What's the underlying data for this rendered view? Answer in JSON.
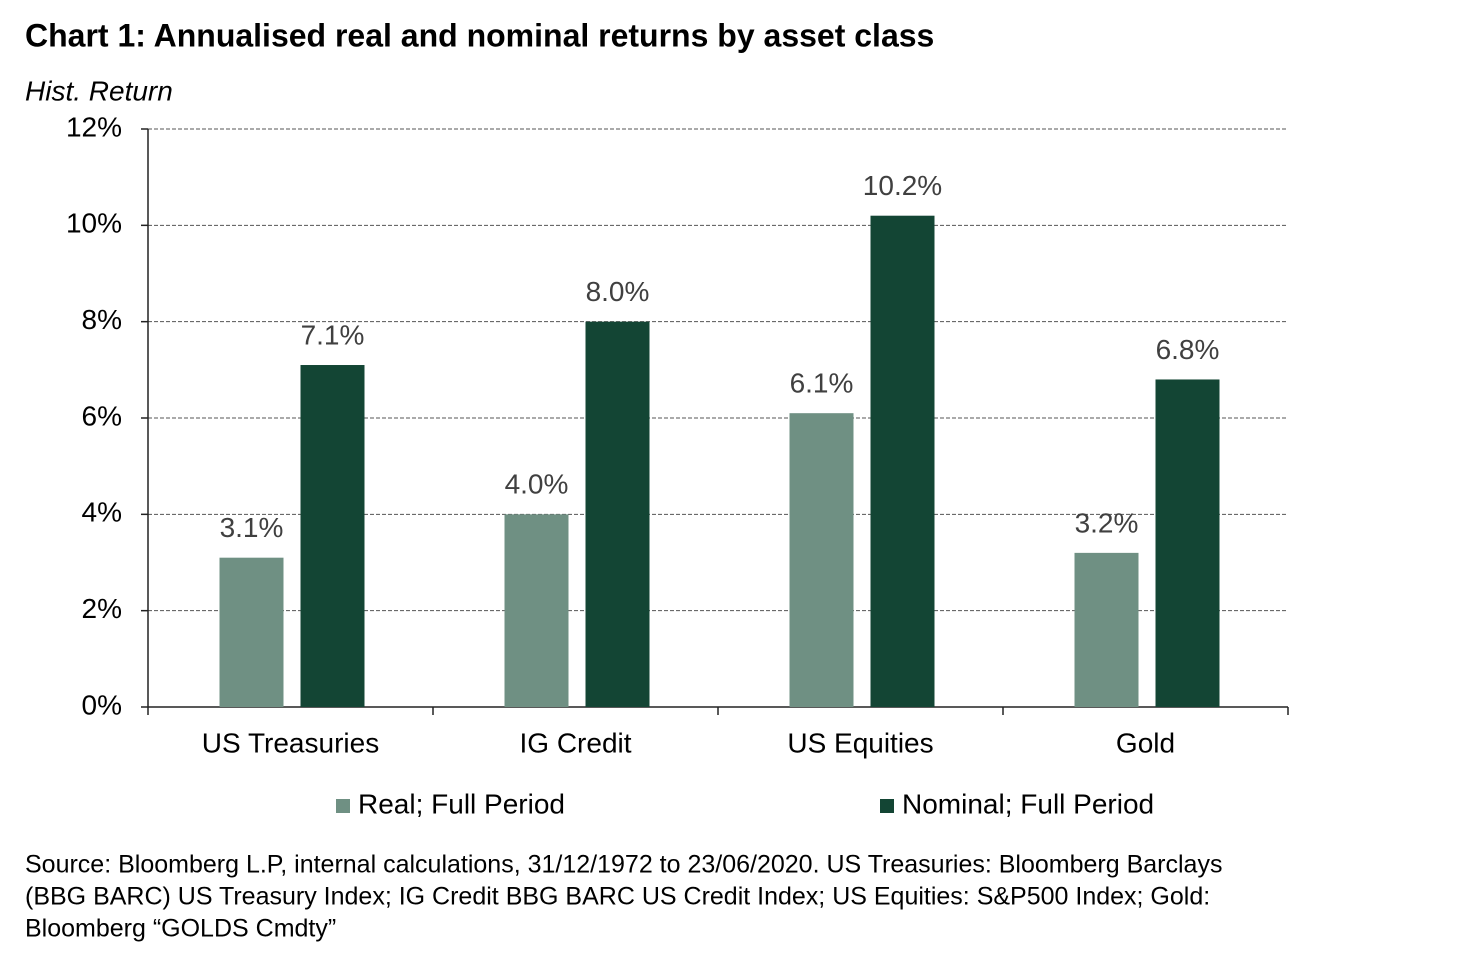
{
  "chart_data": {
    "type": "bar",
    "title": "Chart 1: Annualised real and nominal returns by asset class",
    "y_axis_label": "Hist. Return",
    "categories": [
      "US Treasuries",
      "IG Credit",
      "US Equities",
      "Gold"
    ],
    "series": [
      {
        "name": "Real; Full Period",
        "color": "#6f9083",
        "values": [
          3.1,
          4.0,
          6.1,
          3.2
        ],
        "value_labels": [
          "3.1%",
          "4.0%",
          "6.1%",
          "3.2%"
        ]
      },
      {
        "name": "Nominal; Full Period",
        "color": "#134534",
        "values": [
          7.1,
          8.0,
          10.2,
          6.8
        ],
        "value_labels": [
          "7.1%",
          "8.0%",
          "10.2%",
          "6.8%"
        ]
      }
    ],
    "ylim": [
      0,
      12
    ],
    "yticks": [
      {
        "value": 0,
        "label": "0%"
      },
      {
        "value": 2,
        "label": "2%"
      },
      {
        "value": 4,
        "label": "4%"
      },
      {
        "value": 6,
        "label": "6%"
      },
      {
        "value": 8,
        "label": "8%"
      },
      {
        "value": 10,
        "label": "10%"
      },
      {
        "value": 12,
        "label": "12%"
      }
    ],
    "grid": true,
    "legend": "bottom",
    "source": [
      "Source: Bloomberg L.P, internal calculations, 31/12/1972 to 23/06/2020.  US Treasuries:  Bloomberg Barclays",
      "(BBG BARC) US Treasury Index;  IG Credit BBG BARC US Credit Index;  US Equities:  S&P500 Index;  Gold:",
      "Bloomberg “GOLDS Cmdty”"
    ]
  }
}
